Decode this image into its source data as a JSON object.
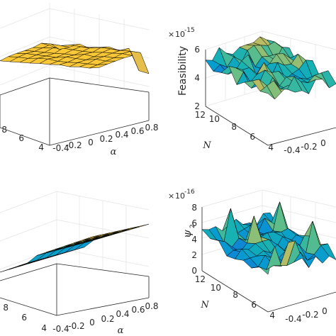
{
  "chart_data": [
    {
      "id": "tl",
      "type": "surface3d",
      "xlabel": "α",
      "ylabel": "",
      "zlabel": "",
      "x_ticks": [
        "-0.4",
        "-0.2",
        "0",
        "0.2",
        "0.4",
        "0.6",
        "0.8"
      ],
      "y_ticks": [
        "4",
        "6",
        "8"
      ],
      "z_ticks": [],
      "exponent": "",
      "colormap": "parula",
      "surface": "smooth high plateau with a few dips at the front edge"
    },
    {
      "id": "tr",
      "type": "surface3d",
      "xlabel": "",
      "ylabel": "N",
      "zlabel": "Feasibility",
      "x_ticks": [
        "-0.4",
        "-0.2",
        "0"
      ],
      "y_ticks": [
        "4",
        "6",
        "8",
        "10",
        "12"
      ],
      "z_ticks": [
        "2",
        "4",
        "6"
      ],
      "exponent": "10",
      "exponent_power": "-15",
      "colormap": "parula",
      "surface": "noisy, values roughly 0 to 6 x 10^-15"
    },
    {
      "id": "bl",
      "type": "surface3d",
      "xlabel": "α",
      "ylabel": "",
      "zlabel": "",
      "x_ticks": [
        "-0.4",
        "-0.2",
        "0",
        "0.2",
        "0.4",
        "0.6",
        "0.8"
      ],
      "y_ticks": [
        "4",
        "6",
        "8"
      ],
      "z_ticks": [],
      "exponent": "",
      "colormap": "parula",
      "surface": "smooth ramp increasing with α"
    },
    {
      "id": "br",
      "type": "surface3d",
      "xlabel": "",
      "ylabel": "N",
      "zlabel": "ψ",
      "zlabel_sub": "2",
      "x_ticks": [
        "-0.4",
        "-0.2",
        "0"
      ],
      "y_ticks": [
        "4",
        "6",
        "8",
        "10",
        "12"
      ],
      "z_ticks": [
        "0",
        "2",
        "4",
        "6",
        "8"
      ],
      "exponent": "10",
      "exponent_power": "-16",
      "colormap": "parula",
      "surface": "noisy, values roughly 0 to 8 x 10^-16"
    }
  ]
}
